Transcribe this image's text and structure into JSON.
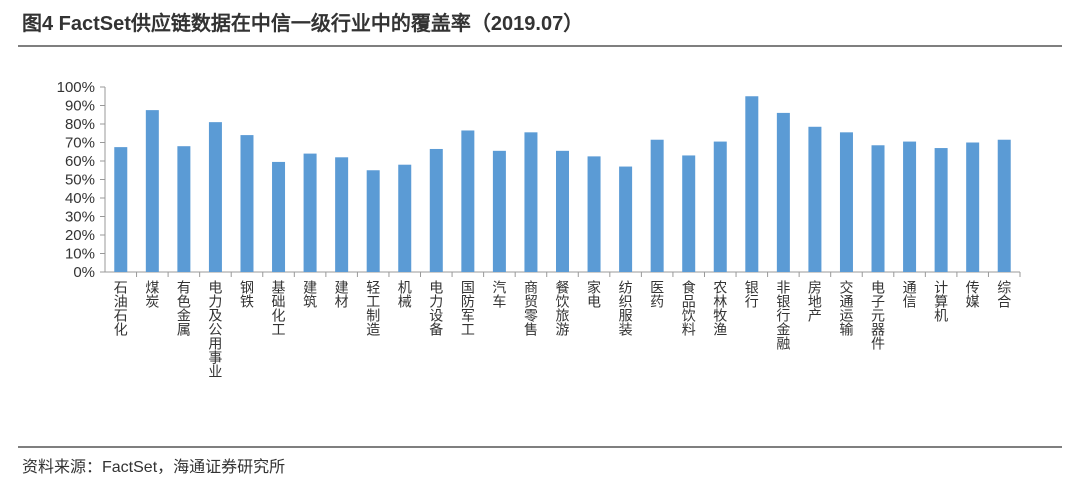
{
  "chart_data": {
    "type": "bar",
    "title": "图4  FactSet供应链数据在中信一级行业中的覆盖率（2019.07）",
    "source": "资料来源：FactSet，海通证券研究所",
    "categories": [
      "石油石化",
      "煤炭",
      "有色金属",
      "电力及公用事业",
      "钢铁",
      "基础化工",
      "建筑",
      "建材",
      "轻工制造",
      "机械",
      "电力设备",
      "国防军工",
      "汽车",
      "商贸零售",
      "餐饮旅游",
      "家电",
      "纺织服装",
      "医药",
      "食品饮料",
      "农林牧渔",
      "银行",
      "非银行金融",
      "房地产",
      "交通运输",
      "电子元器件",
      "通信",
      "计算机",
      "传媒",
      "综合"
    ],
    "values": [
      67.5,
      87.5,
      68,
      81,
      74,
      59.5,
      64,
      62,
      55,
      58,
      66.5,
      76.5,
      65.5,
      75.5,
      65.5,
      62.5,
      57,
      71.5,
      63,
      70.5,
      95,
      86,
      78.5,
      75.5,
      68.5,
      70.5,
      67,
      70,
      71.5
    ],
    "color": "#5b9bd5",
    "ylim": [
      0,
      100
    ],
    "yticks": [
      {
        "value": 0,
        "label": "0%"
      },
      {
        "value": 10,
        "label": "10%"
      },
      {
        "value": 20,
        "label": "20%"
      },
      {
        "value": 30,
        "label": "30%"
      },
      {
        "value": 40,
        "label": "40%"
      },
      {
        "value": 50,
        "label": "50%"
      },
      {
        "value": 60,
        "label": "60%"
      },
      {
        "value": 70,
        "label": "70%"
      },
      {
        "value": 80,
        "label": "80%"
      },
      {
        "value": 90,
        "label": "90%"
      },
      {
        "value": 100,
        "label": "100%"
      }
    ],
    "grid": false
  }
}
